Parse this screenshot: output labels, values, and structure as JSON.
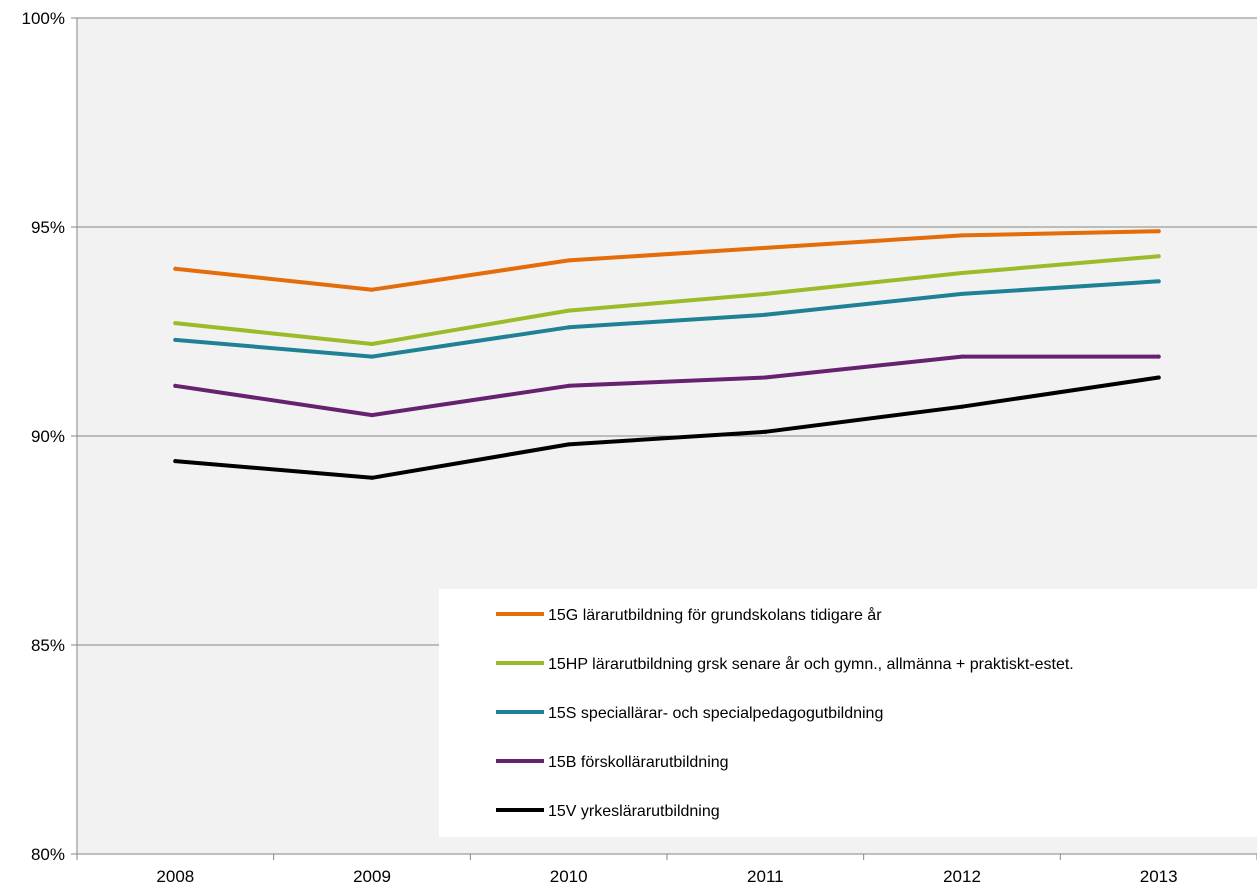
{
  "chart_data": {
    "type": "line",
    "title": "",
    "xlabel": "",
    "ylabel": "",
    "categories": [
      "2008",
      "2009",
      "2010",
      "2011",
      "2012",
      "2013"
    ],
    "ylim": [
      80,
      100
    ],
    "y_ticks": [
      80,
      85,
      90,
      95,
      100
    ],
    "y_tick_format": "%",
    "grid": true,
    "legend_position": "bottom-right",
    "plot_background": "#f2f2f2",
    "series": [
      {
        "name": "15G lärarutbildning för grundskolans tidigare år",
        "color": "#e46c0a",
        "values": [
          94.0,
          93.5,
          94.2,
          94.5,
          94.8,
          94.9
        ]
      },
      {
        "name": "15HP lärarutbildning grsk senare år och gymn., allmänna + praktiskt-estet.",
        "color": "#9bbb29",
        "values": [
          92.7,
          92.2,
          93.0,
          93.4,
          93.9,
          94.3
        ]
      },
      {
        "name": "15S speciallärar- och specialpedagogutbildning",
        "color": "#1f8294",
        "values": [
          92.3,
          91.9,
          92.6,
          92.9,
          93.4,
          93.7
        ]
      },
      {
        "name": "15B förskollärarutbildning",
        "color": "#66226e",
        "values": [
          91.2,
          90.5,
          91.2,
          91.4,
          91.9,
          91.9
        ]
      },
      {
        "name": "15V yrkeslärarutbildning",
        "color": "#000000",
        "values": [
          89.4,
          89.0,
          89.8,
          90.1,
          90.7,
          91.4
        ]
      }
    ]
  }
}
